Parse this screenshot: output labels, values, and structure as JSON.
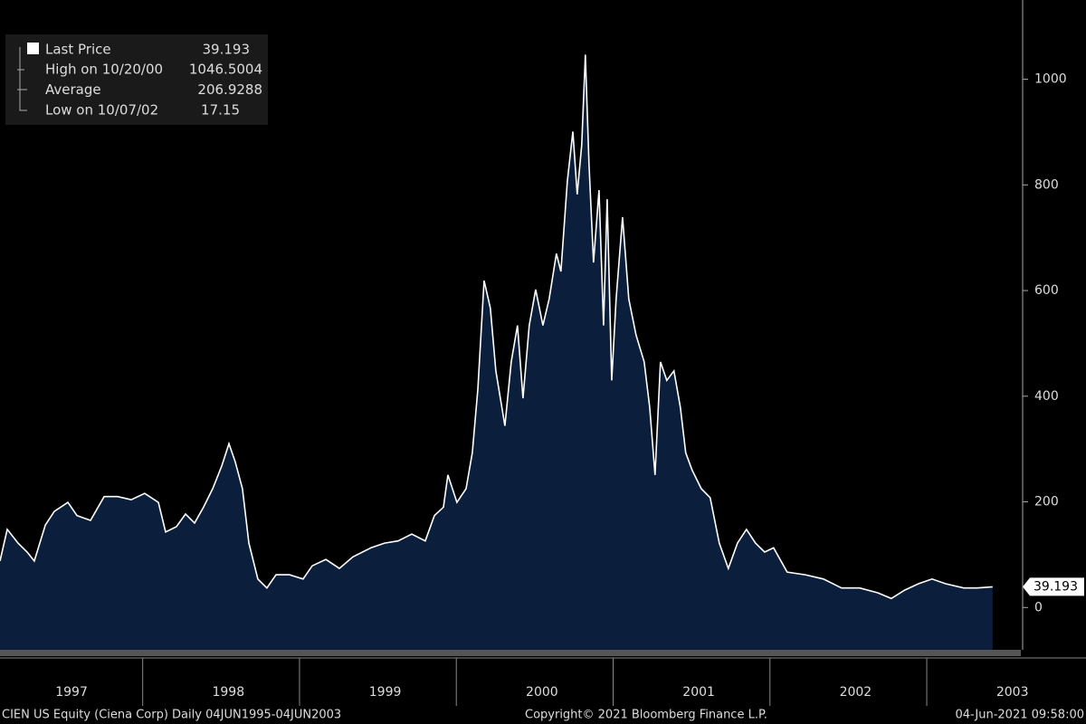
{
  "chart_data": {
    "type": "area",
    "series": [
      {
        "name": "Last Price",
        "color": "#ffffff",
        "fill": "#0b1f3d",
        "legend_value": 39.193,
        "x": [
          1997.09,
          1997.136,
          1997.205,
          1997.263,
          1997.309,
          1997.379,
          1997.436,
          1997.523,
          1997.581,
          1997.667,
          1997.754,
          1997.84,
          1997.927,
          1998.013,
          1998.1,
          1998.146,
          1998.215,
          1998.273,
          1998.331,
          1998.388,
          1998.446,
          1998.504,
          1998.55,
          1998.59,
          1998.636,
          1998.677,
          1998.734,
          1998.792,
          1998.85,
          1998.936,
          1999.023,
          1999.081,
          1999.168,
          1999.254,
          1999.341,
          1999.456,
          1999.543,
          1999.629,
          1999.716,
          1999.802,
          1999.86,
          1999.918,
          1999.946,
          2000.004,
          2000.062,
          2000.102,
          2000.137,
          2000.177,
          2000.217,
          2000.252,
          2000.281,
          2000.31,
          2000.35,
          2000.39,
          2000.425,
          2000.465,
          2000.506,
          2000.552,
          2000.592,
          2000.638,
          2000.667,
          2000.708,
          2000.743,
          2000.771,
          2000.8,
          2000.823,
          2000.846,
          2000.875,
          2000.91,
          2000.939,
          2000.962,
          2000.991,
          2001.019,
          2001.06,
          2001.1,
          2001.146,
          2001.198,
          2001.233,
          2001.267,
          2001.302,
          2001.342,
          2001.388,
          2001.429,
          2001.463,
          2001.504,
          2001.562,
          2001.619,
          2001.677,
          2001.735,
          2001.793,
          2001.85,
          2001.908,
          2001.966,
          2002.023,
          2002.11,
          2002.225,
          2002.341,
          2002.456,
          2002.572,
          2002.687,
          2002.774,
          2002.86,
          2002.947,
          2003.034,
          2003.12,
          2003.235,
          2003.322,
          2003.42
        ],
        "values": [
          88,
          148,
          122,
          105,
          88,
          156,
          182,
          199,
          174,
          165,
          210,
          210,
          204,
          216,
          199,
          143,
          153,
          177,
          160,
          190,
          225,
          268,
          310,
          276,
          225,
          122,
          54,
          37,
          62,
          62,
          54,
          79,
          91,
          74,
          96,
          113,
          122,
          126,
          139,
          126,
          174,
          190,
          251,
          199,
          225,
          293,
          413,
          619,
          567,
          448,
          396,
          344,
          465,
          534,
          396,
          534,
          602,
          534,
          584,
          670,
          636,
          807,
          901,
          782,
          876,
          1046.5004,
          841,
          653,
          790,
          534,
          773,
          430,
          584,
          739,
          584,
          516,
          465,
          379,
          251,
          465,
          430,
          448,
          379,
          293,
          260,
          225,
          208,
          122,
          74,
          122,
          148,
          122,
          105,
          113,
          67,
          62,
          54,
          37,
          37,
          28,
          17.15,
          33,
          45,
          54,
          45,
          37,
          37,
          39.193
        ]
      }
    ],
    "stats": [
      {
        "label": "High on 10/20/00",
        "value": 1046.5004
      },
      {
        "label": "Average",
        "value": 206.9288
      },
      {
        "label": "Low on 10/07/02",
        "value": 17.15
      }
    ],
    "xlim": [
      1997.09,
      2003.6
    ],
    "xticks": [
      {
        "value": 1997.5,
        "label": "1997"
      },
      {
        "value": 1998.5,
        "label": "1998"
      },
      {
        "value": 1999.5,
        "label": "1999"
      },
      {
        "value": 2000.5,
        "label": "2000"
      },
      {
        "value": 2001.5,
        "label": "2001"
      },
      {
        "value": 2002.5,
        "label": "2002"
      },
      {
        "value": 2003.5,
        "label": "2003"
      }
    ],
    "ylim": [
      -80,
      1150
    ],
    "yticks": [
      0,
      200,
      400,
      600,
      800,
      1000
    ],
    "footer": {
      "left": "CIEN US Equity (Ciena Corp)  Daily 04JUN1995-04JUN2003",
      "center": "Copyright© 2021 Bloomberg Finance L.P.",
      "right": "04-Jun-2021 09:58:00"
    }
  }
}
